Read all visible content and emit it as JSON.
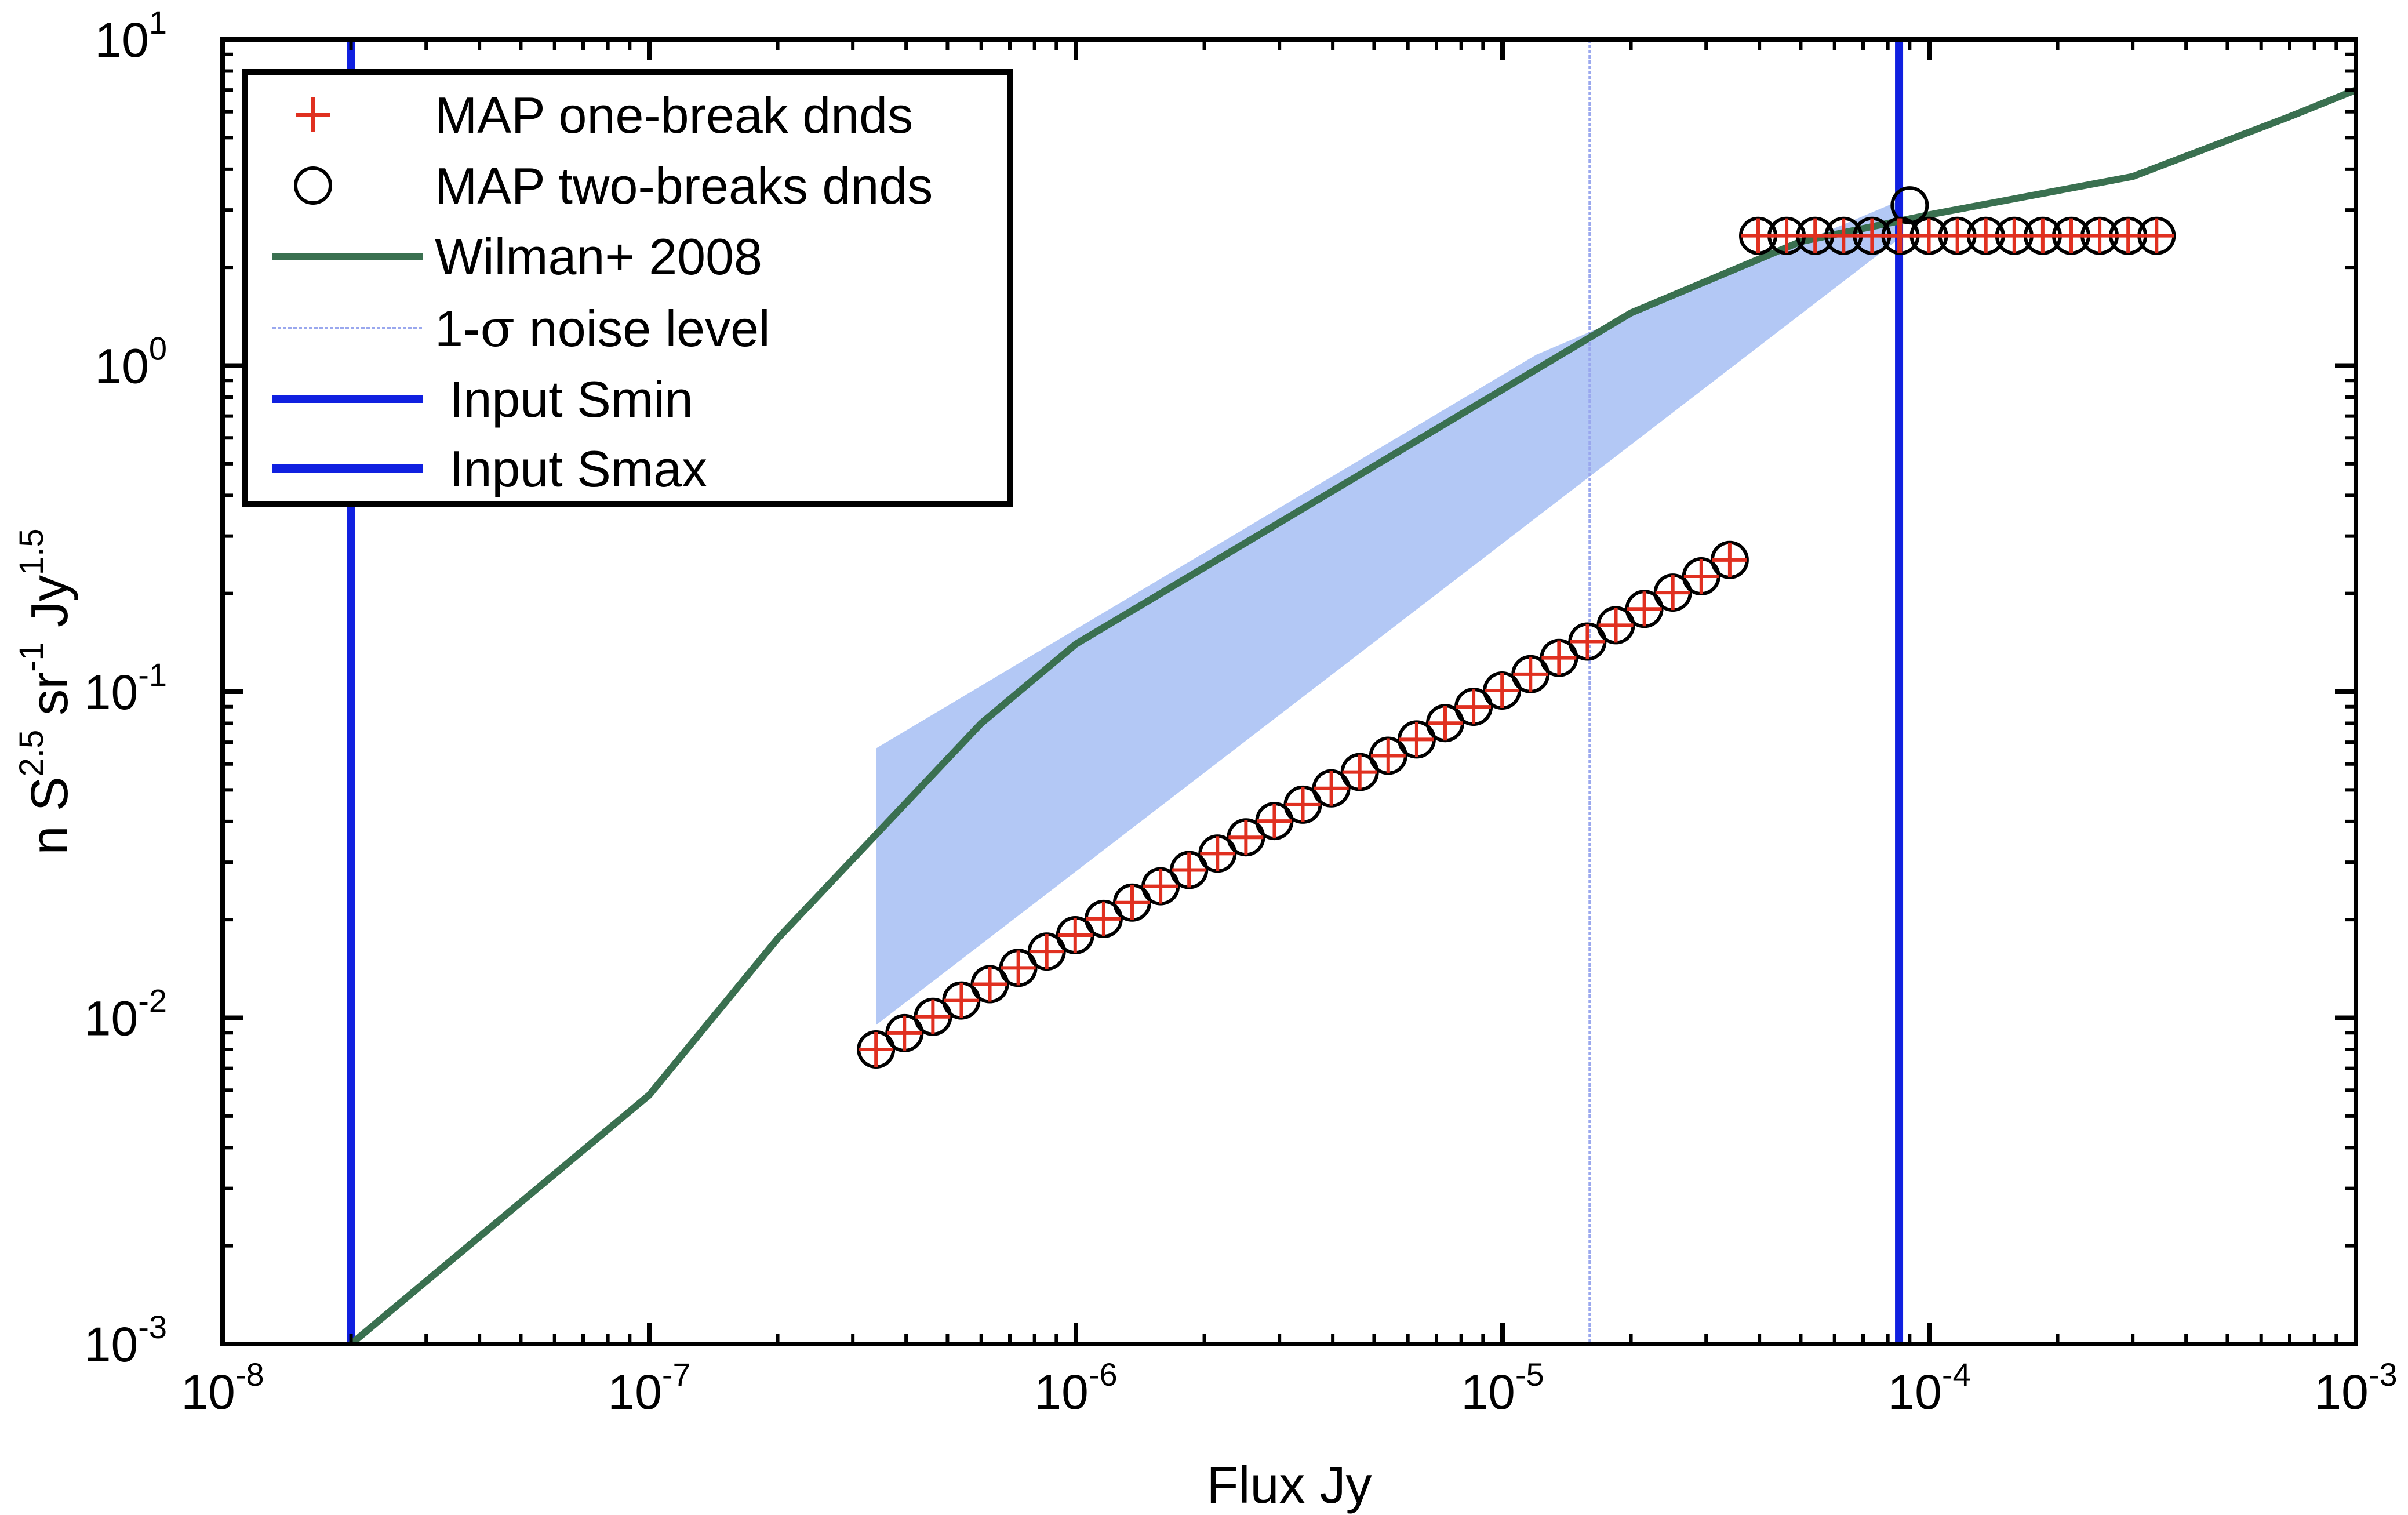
{
  "chart_data": {
    "type": "line",
    "title": "",
    "xlabel": "Flux Jy",
    "ylabel": "n S",
    "ylabel_parts": {
      "lead": "n S",
      "exp1": "2.5",
      "mid": " sr",
      "exp2": "-1",
      "tail": " Jy",
      "exp3": "1.5"
    },
    "xscale": "log",
    "yscale": "log",
    "xlim": [
      1e-08,
      0.001
    ],
    "ylim": [
      0.001,
      10
    ],
    "x_ticks": [
      {
        "base": "10",
        "exp": "-8",
        "value": 1e-08
      },
      {
        "base": "10",
        "exp": "-7",
        "value": 1e-07
      },
      {
        "base": "10",
        "exp": "-6",
        "value": 1e-06
      },
      {
        "base": "10",
        "exp": "-5",
        "value": 1e-05
      },
      {
        "base": "10",
        "exp": "-4",
        "value": 0.0001
      },
      {
        "base": "10",
        "exp": "-3",
        "value": 0.001
      }
    ],
    "y_ticks": [
      {
        "base": "10",
        "exp": "-3",
        "value": 0.001
      },
      {
        "base": "10",
        "exp": "-2",
        "value": 0.01
      },
      {
        "base": "10",
        "exp": "-1",
        "value": 0.1
      },
      {
        "base": "10",
        "exp": "0",
        "value": 1
      },
      {
        "base": "10",
        "exp": "1",
        "value": 10
      }
    ],
    "shaded_region": {
      "color": "#b3c8f5",
      "upper": [
        [
          3.4e-07,
          0.067
        ],
        [
          1.2e-05,
          1.08
        ],
        [
          8.5e-05,
          3.2
        ]
      ],
      "lower": [
        [
          8.5e-05,
          2.45
        ],
        [
          3.4e-07,
          0.0095
        ]
      ]
    },
    "series": [
      {
        "name": "MAP one-break dnds",
        "kind": "marker-plus",
        "color": "#e03020",
        "x_start": 3.4e-07,
        "x_step_log10": 0.0667,
        "count": 47,
        "break_x": 3.6e-05,
        "slope_low": 0.75,
        "y_at_start": 0.008,
        "plateau_value": 2.5,
        "last_x": 8.5e-05,
        "last_value": 2.5
      },
      {
        "name": "MAP two-breaks dnds",
        "kind": "marker-circle",
        "color": "#000000",
        "x_start": 3.4e-07,
        "x_step_log10": 0.0667,
        "count": 47,
        "break_x": 3.6e-05,
        "slope_low": 0.75,
        "y_at_start": 0.008,
        "plateau_value": 2.5,
        "last_x": 9e-05,
        "last_value": 3.1
      },
      {
        "name": "Wilman+ 2008",
        "kind": "line",
        "color": "#3a7050",
        "x": [
          2e-08,
          1e-07,
          2e-07,
          6e-07,
          1e-06,
          2e-05,
          5e-05,
          0.0001,
          0.0003,
          0.0007,
          0.001
        ],
        "y": [
          0.001,
          0.0058,
          0.0175,
          0.08,
          0.14,
          1.45,
          2.4,
          2.9,
          3.8,
          5.8,
          7.0
        ]
      },
      {
        "name": "1-σ noise level",
        "kind": "vline",
        "color": "#9aa8ee",
        "x_value": 1.6e-05
      },
      {
        "name": "Input Smin",
        "kind": "vline",
        "color": "#1020e0",
        "x_value": 2e-08
      },
      {
        "name": "Input Smax",
        "kind": "vline",
        "color": "#1020e0",
        "x_value": 8.5e-05
      }
    ],
    "legend": {
      "position": "top-left",
      "entries": [
        {
          "label": "MAP one-break dnds",
          "symbol": "plus",
          "color": "#e03020"
        },
        {
          "label": "MAP two-breaks dnds",
          "symbol": "circle",
          "color": "#000000"
        },
        {
          "label": "Wilman+ 2008",
          "symbol": "line",
          "color": "#3a7050"
        },
        {
          "label_pre": "1-",
          "label_sym": "σ",
          "label_post": " noise level",
          "symbol": "thin-line",
          "color": "#9aa8ee"
        },
        {
          "label": "Input Smin",
          "symbol": "line",
          "color": "#1020e0"
        },
        {
          "label": "Input Smax",
          "symbol": "line",
          "color": "#1020e0"
        }
      ]
    }
  }
}
